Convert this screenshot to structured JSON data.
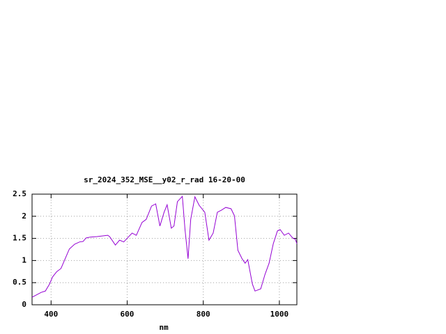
{
  "chart_data": {
    "type": "line",
    "title": "sr_2024_352_MSE__y02_r_rad 16-20-00",
    "x_label": "nm",
    "xlim": [
      350,
      1046
    ],
    "ylim": [
      0,
      2.5
    ],
    "xticks": [
      400,
      600,
      800,
      1000
    ],
    "yticks": [
      0,
      0.5,
      1,
      1.5,
      2,
      2.5
    ],
    "grid": true,
    "x": [
      350,
      374,
      385,
      396,
      404,
      415,
      426,
      437,
      448,
      462,
      475,
      484,
      492,
      503,
      521,
      549,
      554,
      569,
      580,
      591,
      604,
      613,
      624,
      639,
      650,
      664,
      675,
      686,
      697,
      705,
      716,
      723,
      732,
      745,
      752,
      760,
      767,
      778,
      789,
      804,
      815,
      826,
      837,
      848,
      859,
      873,
      882,
      891,
      902,
      910,
      917,
      929,
      936,
      951,
      962,
      973,
      984,
      995,
      1002,
      1013,
      1024,
      1035,
      1042,
      1046
    ],
    "series": [
      {
        "name": "sr_2024_352_MSE__y02_r_rad",
        "color": "#9400d3",
        "values": [
          0.17,
          0.28,
          0.31,
          0.47,
          0.63,
          0.75,
          0.82,
          1.04,
          1.26,
          1.37,
          1.42,
          1.43,
          1.51,
          1.53,
          1.54,
          1.57,
          1.54,
          1.35,
          1.46,
          1.42,
          1.54,
          1.62,
          1.57,
          1.86,
          1.93,
          2.23,
          2.28,
          1.78,
          2.09,
          2.26,
          1.73,
          1.78,
          2.33,
          2.45,
          1.7,
          1.04,
          1.93,
          2.44,
          2.25,
          2.09,
          1.46,
          1.62,
          2.09,
          2.14,
          2.2,
          2.17,
          2.01,
          1.23,
          1.04,
          0.94,
          1.02,
          0.47,
          0.31,
          0.36,
          0.68,
          0.94,
          1.38,
          1.67,
          1.7,
          1.57,
          1.62,
          1.51,
          1.48,
          1.38
        ]
      }
    ]
  }
}
